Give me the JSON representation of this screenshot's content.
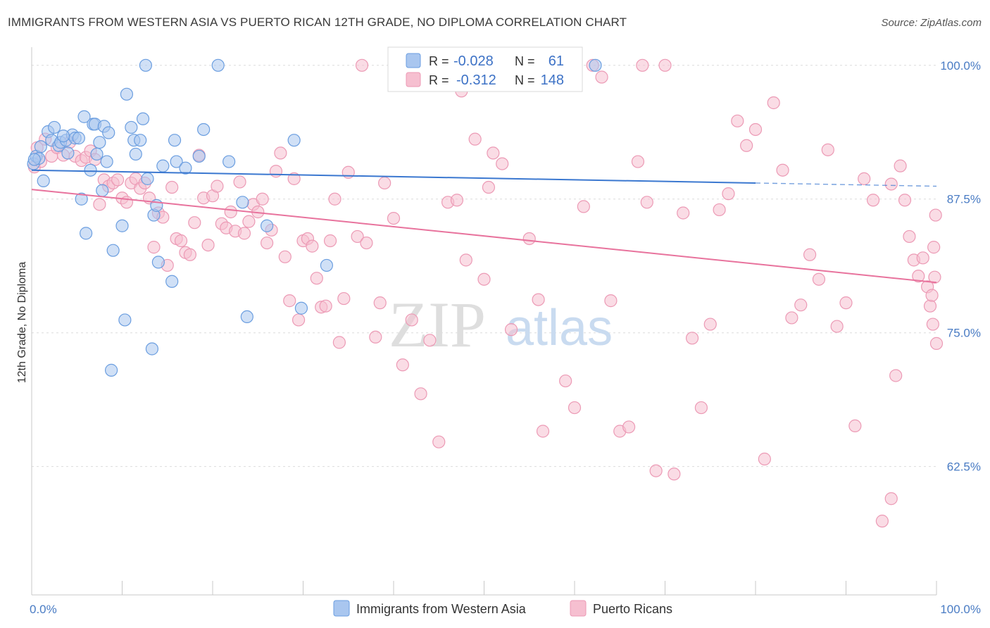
{
  "title": "IMMIGRANTS FROM WESTERN ASIA VS PUERTO RICAN 12TH GRADE, NO DIPLOMA CORRELATION CHART",
  "source": "Source: ZipAtlas.com",
  "watermark": {
    "zip": "ZIP",
    "atlas": "atlas"
  },
  "colors": {
    "blue_fill": "#a9c6ef",
    "blue_stroke": "#6b9ee0",
    "blue_line": "#3b78d0",
    "pink_fill": "#f6bfd0",
    "pink_stroke": "#ec9ab5",
    "pink_line": "#e8739d",
    "grid": "#dcdcdc",
    "axis_text": "#4a7cc4"
  },
  "legend": {
    "rows": [
      {
        "r_label": "R =",
        "r_value": "-0.028",
        "n_label": "N =",
        "n_value": "61"
      },
      {
        "r_label": "R =",
        "r_value": "-0.312",
        "n_label": "N =",
        "n_value": "148"
      }
    ]
  },
  "chart_data": {
    "type": "scatter",
    "title": "IMMIGRANTS FROM WESTERN ASIA VS PUERTO RICAN 12TH GRADE, NO DIPLOMA CORRELATION CHART",
    "xlabel": "",
    "ylabel": "12th Grade, No Diploma",
    "xlim": [
      0,
      100
    ],
    "ylim": [
      50.5,
      101.5
    ],
    "x_tick_labels": [
      "0.0%",
      "100.0%"
    ],
    "y_ticks": [
      62.5,
      75.0,
      87.5,
      100.0
    ],
    "y_tick_labels": [
      "62.5%",
      "75.0%",
      "87.5%",
      "100.0%"
    ],
    "grid": true,
    "legend_position": "top-center",
    "series": [
      {
        "name": "Immigrants from Western Asia",
        "color": "#a9c6ef",
        "trend": {
          "x": [
            0,
            80
          ],
          "y": [
            90.2,
            89.0
          ],
          "dashed_extension": {
            "x": [
              80,
              100
            ],
            "y": [
              89.0,
              88.7
            ]
          }
        },
        "points": [
          [
            0.2,
            90.8
          ],
          [
            0.5,
            91.5
          ],
          [
            0.8,
            91.3
          ],
          [
            1.0,
            92.4
          ],
          [
            1.3,
            89.2
          ],
          [
            1.8,
            93.8
          ],
          [
            2.2,
            93.0
          ],
          [
            2.5,
            94.2
          ],
          [
            3.0,
            92.5
          ],
          [
            3.2,
            92.8
          ],
          [
            3.8,
            93.0
          ],
          [
            4.0,
            91.8
          ],
          [
            4.5,
            93.5
          ],
          [
            4.8,
            93.2
          ],
          [
            5.2,
            93.2
          ],
          [
            5.5,
            87.5
          ],
          [
            5.8,
            95.2
          ],
          [
            6.0,
            84.3
          ],
          [
            6.5,
            90.2
          ],
          [
            6.8,
            94.5
          ],
          [
            7.0,
            94.5
          ],
          [
            7.2,
            91.7
          ],
          [
            7.5,
            92.8
          ],
          [
            7.8,
            88.3
          ],
          [
            8.0,
            94.3
          ],
          [
            8.3,
            91.0
          ],
          [
            8.5,
            93.7
          ],
          [
            8.8,
            71.5
          ],
          [
            9.0,
            82.7
          ],
          [
            10.0,
            85.0
          ],
          [
            10.3,
            76.2
          ],
          [
            10.5,
            97.3
          ],
          [
            11.0,
            94.2
          ],
          [
            11.3,
            93.0
          ],
          [
            11.5,
            91.7
          ],
          [
            12.0,
            93.0
          ],
          [
            12.3,
            95.0
          ],
          [
            12.6,
            100.0
          ],
          [
            12.8,
            89.4
          ],
          [
            13.3,
            73.5
          ],
          [
            13.5,
            86.0
          ],
          [
            13.8,
            86.9
          ],
          [
            14.0,
            81.6
          ],
          [
            14.5,
            90.6
          ],
          [
            15.5,
            79.8
          ],
          [
            15.8,
            93.0
          ],
          [
            16.0,
            91.0
          ],
          [
            17.0,
            90.4
          ],
          [
            18.5,
            91.5
          ],
          [
            19.0,
            94.0
          ],
          [
            20.6,
            100.0
          ],
          [
            21.8,
            91.0
          ],
          [
            23.3,
            87.2
          ],
          [
            23.8,
            76.5
          ],
          [
            26.0,
            85.0
          ],
          [
            29.0,
            93.0
          ],
          [
            29.8,
            77.3
          ],
          [
            32.6,
            81.3
          ],
          [
            62.3,
            100.0
          ],
          [
            0.3,
            91.2
          ],
          [
            3.5,
            93.4
          ]
        ]
      },
      {
        "name": "Puerto Ricans",
        "color": "#f6bfd0",
        "trend": {
          "x": [
            0,
            100
          ],
          "y": [
            88.4,
            79.7
          ]
        },
        "points": [
          [
            0.3,
            90.5
          ],
          [
            0.6,
            92.3
          ],
          [
            1.0,
            91.0
          ],
          [
            1.5,
            93.1
          ],
          [
            2.2,
            91.5
          ],
          [
            2.8,
            92.3
          ],
          [
            3.5,
            91.6
          ],
          [
            4.2,
            92.8
          ],
          [
            4.8,
            91.5
          ],
          [
            5.5,
            91.1
          ],
          [
            6.0,
            91.4
          ],
          [
            6.5,
            92.0
          ],
          [
            7.0,
            91.2
          ],
          [
            7.5,
            87.0
          ],
          [
            8.0,
            89.3
          ],
          [
            8.5,
            88.7
          ],
          [
            9.0,
            89.0
          ],
          [
            9.5,
            89.3
          ],
          [
            10.0,
            87.6
          ],
          [
            10.5,
            87.2
          ],
          [
            11.0,
            89.0
          ],
          [
            11.5,
            89.4
          ],
          [
            12.0,
            88.5
          ],
          [
            12.5,
            89.0
          ],
          [
            13.0,
            87.6
          ],
          [
            13.5,
            83.0
          ],
          [
            14.0,
            86.2
          ],
          [
            14.5,
            85.8
          ],
          [
            15.0,
            81.3
          ],
          [
            15.5,
            88.6
          ],
          [
            16.0,
            83.8
          ],
          [
            16.5,
            83.6
          ],
          [
            17.0,
            82.5
          ],
          [
            17.5,
            82.3
          ],
          [
            18.0,
            85.3
          ],
          [
            18.5,
            91.6
          ],
          [
            19.0,
            87.6
          ],
          [
            19.5,
            83.2
          ],
          [
            20.0,
            87.8
          ],
          [
            20.5,
            88.7
          ],
          [
            21.0,
            85.2
          ],
          [
            21.5,
            84.8
          ],
          [
            22.0,
            86.3
          ],
          [
            22.5,
            84.5
          ],
          [
            23.0,
            89.1
          ],
          [
            23.5,
            84.3
          ],
          [
            24.0,
            85.4
          ],
          [
            24.5,
            87.0
          ],
          [
            25.0,
            86.3
          ],
          [
            25.5,
            87.5
          ],
          [
            26.0,
            83.4
          ],
          [
            26.5,
            84.6
          ],
          [
            27.0,
            90.1
          ],
          [
            27.5,
            91.8
          ],
          [
            28.0,
            82.1
          ],
          [
            28.5,
            78.0
          ],
          [
            29.0,
            89.4
          ],
          [
            29.5,
            76.2
          ],
          [
            30.0,
            83.6
          ],
          [
            30.5,
            83.8
          ],
          [
            31.0,
            83.1
          ],
          [
            31.5,
            80.1
          ],
          [
            32.0,
            77.4
          ],
          [
            32.5,
            77.5
          ],
          [
            33.0,
            83.6
          ],
          [
            33.5,
            87.5
          ],
          [
            34.0,
            74.1
          ],
          [
            34.5,
            78.2
          ],
          [
            35.0,
            90.0
          ],
          [
            36.0,
            84.0
          ],
          [
            37.0,
            83.4
          ],
          [
            38.0,
            74.6
          ],
          [
            38.5,
            77.8
          ],
          [
            39.0,
            89.0
          ],
          [
            40.0,
            85.7
          ],
          [
            41.0,
            72.0
          ],
          [
            42.0,
            76.2
          ],
          [
            43.0,
            69.3
          ],
          [
            44.0,
            74.3
          ],
          [
            45.0,
            64.8
          ],
          [
            46.0,
            87.2
          ],
          [
            47.0,
            87.4
          ],
          [
            48.0,
            81.8
          ],
          [
            49.0,
            93.1
          ],
          [
            50.0,
            80.0
          ],
          [
            50.5,
            88.6
          ],
          [
            51.0,
            91.8
          ],
          [
            52.0,
            90.8
          ],
          [
            53.0,
            75.3
          ],
          [
            55.0,
            83.8
          ],
          [
            56.0,
            78.1
          ],
          [
            59.0,
            70.5
          ],
          [
            60.0,
            68.0
          ],
          [
            61.0,
            86.8
          ],
          [
            62.0,
            100.0
          ],
          [
            63.0,
            98.9
          ],
          [
            64.0,
            78.0
          ],
          [
            65.0,
            65.8
          ],
          [
            66.0,
            66.2
          ],
          [
            67.0,
            91.0
          ],
          [
            68.0,
            87.2
          ],
          [
            69.0,
            62.1
          ],
          [
            70.0,
            100.0
          ],
          [
            71.0,
            61.8
          ],
          [
            72.0,
            86.2
          ],
          [
            73.0,
            74.5
          ],
          [
            74.0,
            68.0
          ],
          [
            75.0,
            75.8
          ],
          [
            76.0,
            86.5
          ],
          [
            77.0,
            88.0
          ],
          [
            78.0,
            94.8
          ],
          [
            79.0,
            92.5
          ],
          [
            80.0,
            94.0
          ],
          [
            81.0,
            63.2
          ],
          [
            82.0,
            96.5
          ],
          [
            83.0,
            90.2
          ],
          [
            84.0,
            76.4
          ],
          [
            85.0,
            77.6
          ],
          [
            86.0,
            82.3
          ],
          [
            87.0,
            80.0
          ],
          [
            88.0,
            92.1
          ],
          [
            89.0,
            75.6
          ],
          [
            90.0,
            77.8
          ],
          [
            91.0,
            66.3
          ],
          [
            92.0,
            89.4
          ],
          [
            93.0,
            87.4
          ],
          [
            94.0,
            57.4
          ],
          [
            95.0,
            88.9
          ],
          [
            95.5,
            71.0
          ],
          [
            96.0,
            90.6
          ],
          [
            96.5,
            87.4
          ],
          [
            97.0,
            84.0
          ],
          [
            97.5,
            81.8
          ],
          [
            98.0,
            80.3
          ],
          [
            98.5,
            82.0
          ],
          [
            99.0,
            79.3
          ],
          [
            99.3,
            77.5
          ],
          [
            99.5,
            78.5
          ],
          [
            99.6,
            75.8
          ],
          [
            99.7,
            83.0
          ],
          [
            99.8,
            80.2
          ],
          [
            99.9,
            86.0
          ],
          [
            100.0,
            74.0
          ],
          [
            67.5,
            100.0
          ],
          [
            56.5,
            65.8
          ],
          [
            36.5,
            100.0
          ],
          [
            47.5,
            97.6
          ],
          [
            95.0,
            59.5
          ]
        ]
      }
    ]
  },
  "bottom_legend": [
    {
      "label": "Immigrants from Western Asia"
    },
    {
      "label": "Puerto Ricans"
    }
  ]
}
